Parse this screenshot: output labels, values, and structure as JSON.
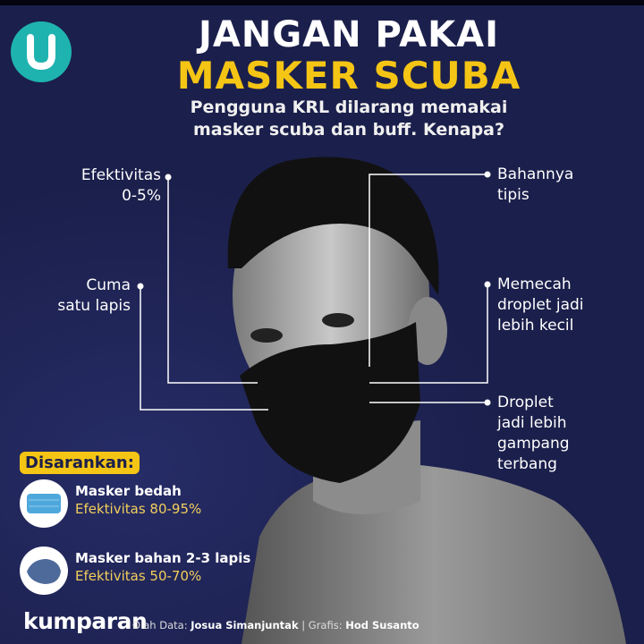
{
  "header": {
    "logo_icon": "u-logo-icon",
    "title_line1": "JANGAN PAKAI",
    "title_line2": "MASKER SCUBA",
    "subtitle_line1": "Pengguna KRL dilarang memakai",
    "subtitle_line2": "masker scuba dan buff. Kenapa?"
  },
  "callouts": {
    "left": [
      {
        "line1": "Efektivitas",
        "line2": "0-5%"
      },
      {
        "line1": "Cuma",
        "line2": "satu lapis"
      }
    ],
    "right": [
      {
        "line1": "Bahannya",
        "line2": "tipis"
      },
      {
        "line1": "Memecah",
        "line2": "droplet jadi",
        "line3": "lebih kecil"
      },
      {
        "line1": "Droplet",
        "line2": "jadi lebih",
        "line3": "gampang",
        "line4": "terbang"
      }
    ]
  },
  "recommended": {
    "label": "Disarankan:",
    "items": [
      {
        "name": "Masker bedah",
        "effectiveness": "Efektivitas 80-95%",
        "icon": "surgical-mask-icon"
      },
      {
        "name": "Masker bahan 2-3 lapis",
        "effectiveness": "Efektivitas 50-70%",
        "icon": "cloth-mask-icon"
      }
    ]
  },
  "footer": {
    "brand": "kumparan",
    "data_label": "Olah Data:",
    "data_by": "Josua Simanjuntak",
    "separator": "|",
    "graphic_label": "Grafis:",
    "graphic_by": "Hod Susanto"
  },
  "colors": {
    "background": "#1b1f4b",
    "accent_yellow": "#f5c515",
    "logo_teal": "#1fb3b0",
    "effectiveness_text": "#f2cf5b"
  }
}
